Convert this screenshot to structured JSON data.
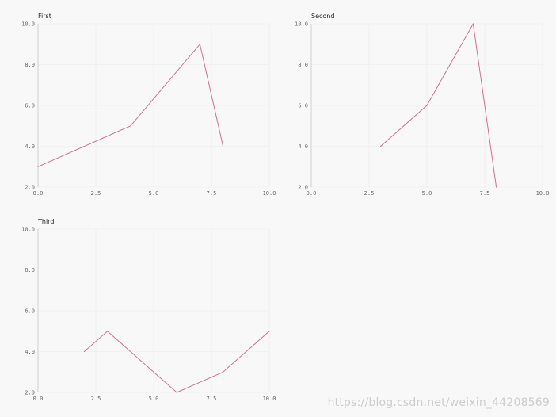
{
  "chart_data": [
    {
      "type": "line",
      "title": "First",
      "x": [
        0,
        4,
        7,
        8
      ],
      "y": [
        3,
        5,
        9,
        4
      ],
      "xlim": [
        0,
        10
      ],
      "ylim": [
        2,
        10
      ],
      "xticks": [
        "0.0",
        "2.5",
        "5.0",
        "7.5",
        "10.0"
      ],
      "yticks": [
        "2.0",
        "4.0",
        "6.0",
        "8.0",
        "10.0"
      ],
      "grid": true,
      "color": "#d0708f"
    },
    {
      "type": "line",
      "title": "Second",
      "x": [
        3,
        5,
        7,
        8
      ],
      "y": [
        4,
        6,
        10,
        2
      ],
      "xlim": [
        0,
        10
      ],
      "ylim": [
        2,
        10
      ],
      "xticks": [
        "0.0",
        "2.5",
        "5.0",
        "7.5",
        "10.0"
      ],
      "yticks": [
        "2.0",
        "4.0",
        "6.0",
        "8.0",
        "10.0"
      ],
      "grid": true,
      "color": "#d0708f"
    },
    {
      "type": "line",
      "title": "Third",
      "x": [
        2,
        3,
        6,
        8,
        10
      ],
      "y": [
        4,
        5,
        2,
        3,
        5
      ],
      "xlim": [
        0,
        10
      ],
      "ylim": [
        2,
        10
      ],
      "xticks": [
        "0.0",
        "2.5",
        "5.0",
        "7.5",
        "10.0"
      ],
      "yticks": [
        "2.0",
        "4.0",
        "6.0",
        "8.0",
        "10.0"
      ],
      "grid": true,
      "color": "#d0708f"
    }
  ],
  "watermark": "https://blog.csdn.net/weixin_44208569"
}
